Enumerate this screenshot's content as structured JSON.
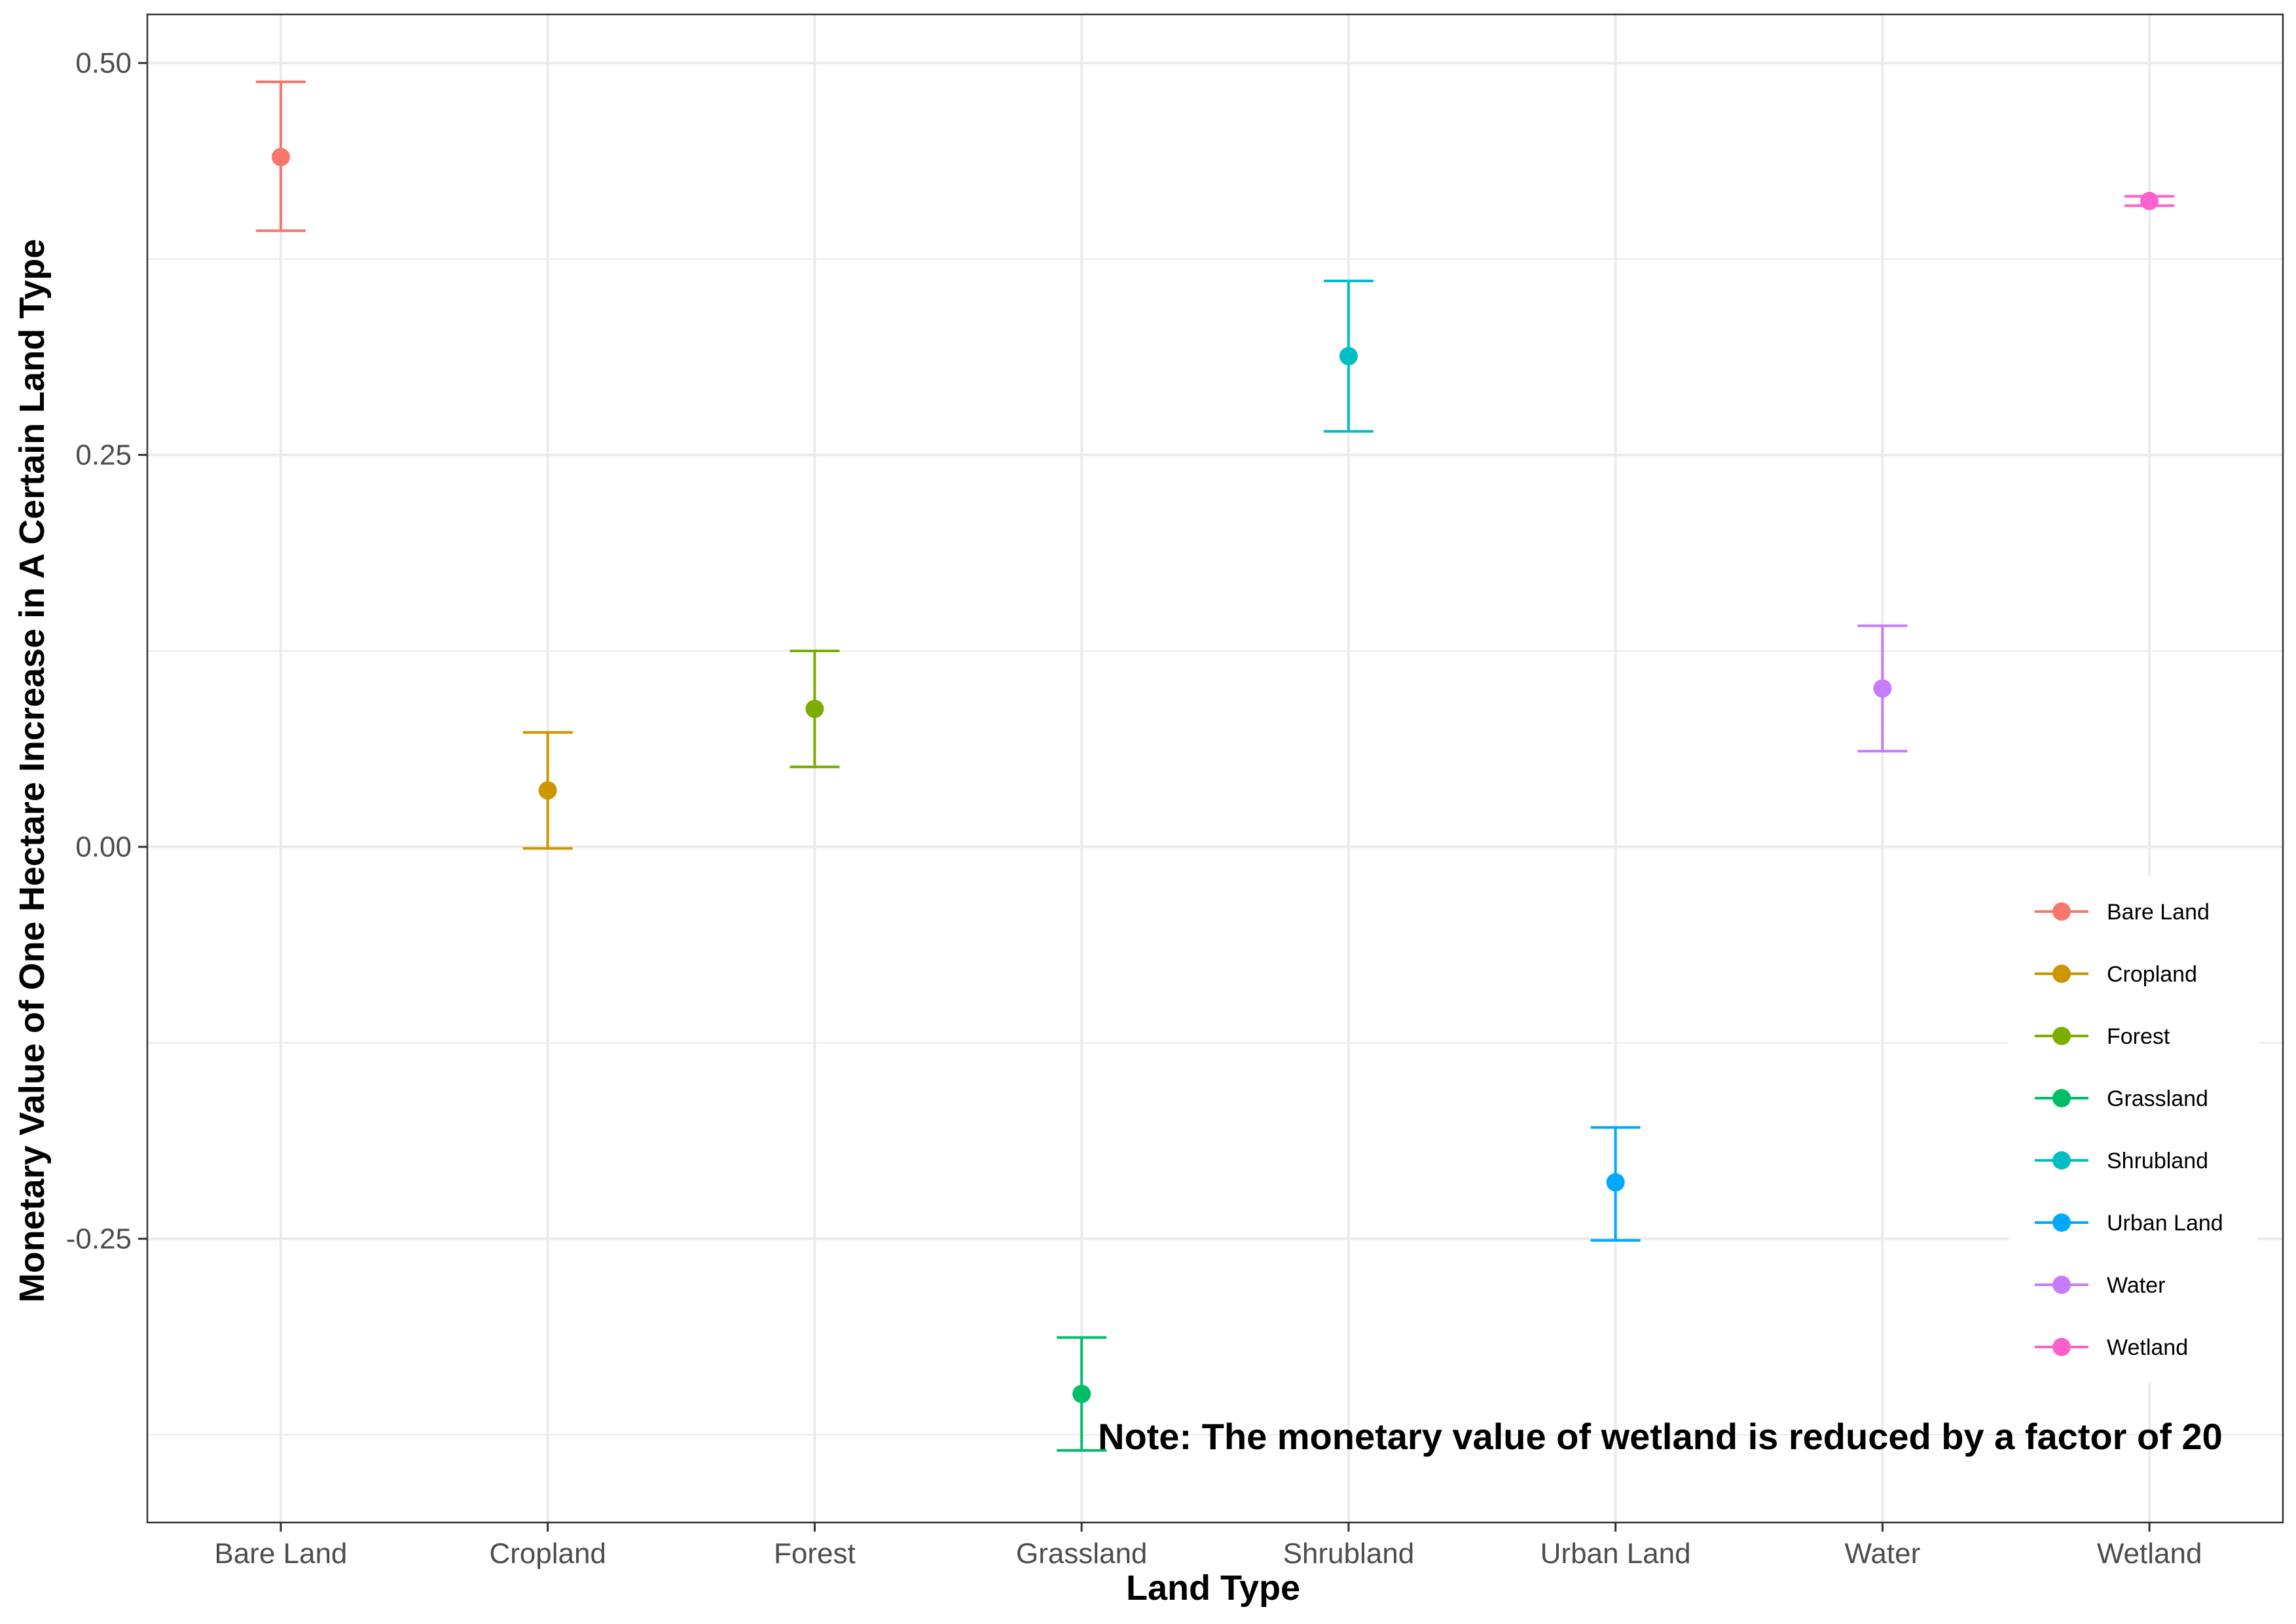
{
  "chart_data": {
    "type": "scatter",
    "title": "",
    "xlabel": "Land Type",
    "ylabel": "Monetary Value of One Hectare Increase in A Certain Land Type",
    "categories": [
      "Bare Land",
      "Cropland",
      "Forest",
      "Grassland",
      "Shrubland",
      "Urban Land",
      "Water",
      "Wetland"
    ],
    "points": [
      {
        "category": "Bare Land",
        "value": 0.44,
        "lower": 0.393,
        "upper": 0.488,
        "color": "#F8766D"
      },
      {
        "category": "Cropland",
        "value": 0.036,
        "lower": -0.001,
        "upper": 0.073,
        "color": "#CD9600"
      },
      {
        "category": "Forest",
        "value": 0.088,
        "lower": 0.051,
        "upper": 0.125,
        "color": "#7CAE00"
      },
      {
        "category": "Grassland",
        "value": -0.349,
        "lower": -0.385,
        "upper": -0.313,
        "color": "#00BE67"
      },
      {
        "category": "Shrubland",
        "value": 0.313,
        "lower": 0.265,
        "upper": 0.361,
        "color": "#00BFC4"
      },
      {
        "category": "Urban Land",
        "value": -0.214,
        "lower": -0.251,
        "upper": -0.179,
        "color": "#00A9FF"
      },
      {
        "category": "Water",
        "value": 0.101,
        "lower": 0.061,
        "upper": 0.141,
        "color": "#C77CFF"
      },
      {
        "category": "Wetland",
        "value": 0.412,
        "lower": 0.409,
        "upper": 0.415,
        "color": "#FF61CC"
      }
    ],
    "yticks": [
      -0.25,
      0.0,
      0.25,
      0.5
    ],
    "ytick_labels": [
      "-0.25",
      "0.00",
      "0.25",
      "0.50"
    ],
    "ylim": [
      -0.431,
      0.531
    ],
    "grid": true,
    "legend": {
      "position": "right",
      "entries": [
        "Bare Land",
        "Cropland",
        "Forest",
        "Grassland",
        "Shrubland",
        "Urban Land",
        "Water",
        "Wetland"
      ]
    },
    "annotation": "Note: The monetary value of wetland is reduced by a factor of 20"
  }
}
